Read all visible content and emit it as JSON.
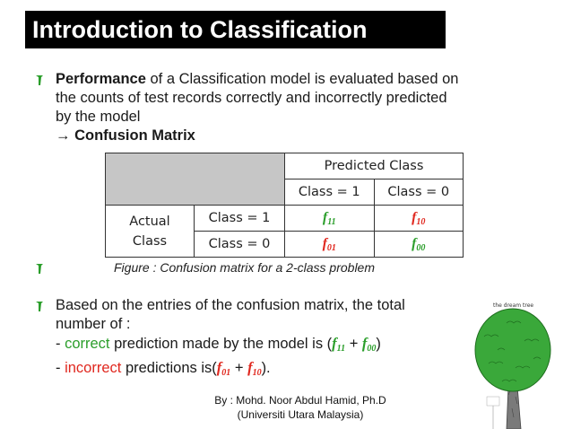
{
  "title": "Introduction to Classification",
  "bullet1": {
    "bold_lead": "Performance",
    "text_line1": " of a Classification model is evaluated based on",
    "text_line2": "the counts of test records correctly and incorrectly predicted",
    "text_line3": "by the model",
    "arrow": "→",
    "confusion_label": "Confusion Matrix"
  },
  "table": {
    "predicted_header": "Predicted Class",
    "col1": "Class = 1",
    "col0": "Class = 0",
    "actual_line1": "Actual",
    "actual_line2": "Class",
    "row1": "Class = 1",
    "row0": "Class = 0",
    "f11": {
      "base": "f",
      "sub": "11"
    },
    "f10": {
      "base": "f",
      "sub": "10"
    },
    "f01": {
      "base": "f",
      "sub": "01"
    },
    "f00": {
      "base": "f",
      "sub": "00"
    }
  },
  "caption": "Figure : Confusion matrix for a 2-class problem",
  "bullet2": {
    "line1": "Based on  the entries of the confusion matrix, the total",
    "line2": "number of :",
    "correct_prefix": "- ",
    "correct_word": "correct",
    "correct_rest": " prediction made by the model is (",
    "plus": " + ",
    "close": ")",
    "incorrect_prefix": "- ",
    "incorrect_word": "incorrect",
    "incorrect_rest": " predictions is(",
    "close_dot": ")."
  },
  "byline": {
    "line1": "By : Mohd. Noor Abdul Hamid, Ph.D",
    "line2": "(Universiti Utara Malaysia)"
  },
  "tree_caption": "the  dream  tree",
  "colors": {
    "green": "#2b9e2b",
    "red": "#e0281f",
    "title_bg": "#000000"
  }
}
